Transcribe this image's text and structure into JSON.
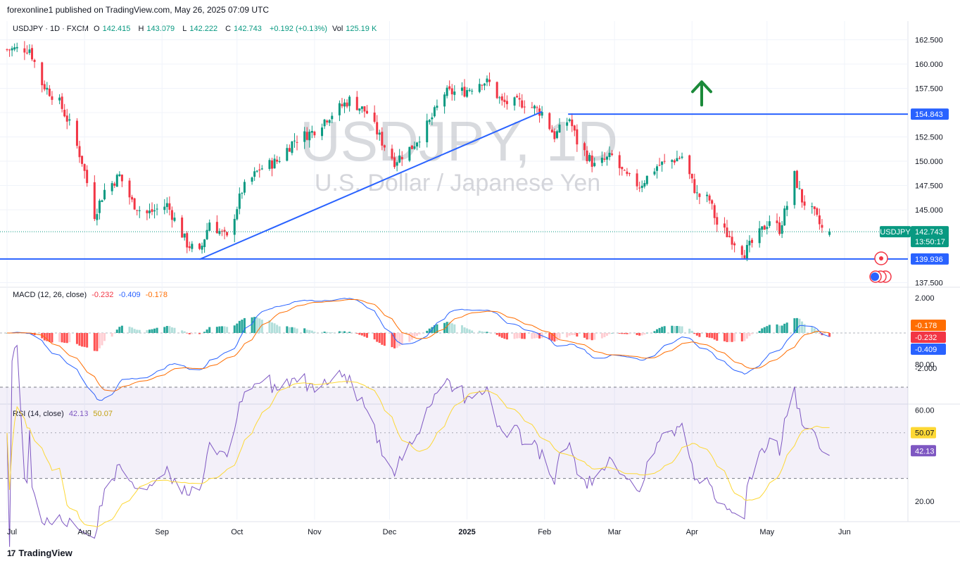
{
  "header": {
    "publisher": "forexonline1 published on TradingView.com, May 26, 2025 07:09 UTC"
  },
  "ohlc": {
    "symbol": "USDJPY · 1D · FXCM",
    "o_label": "O",
    "o": "142.415",
    "h_label": "H",
    "h": "143.079",
    "l_label": "L",
    "l": "142.222",
    "c_label": "C",
    "c": "142.743",
    "change": "+0.192 (+0.13%)",
    "vol_label": "Vol",
    "vol": "125.19 K"
  },
  "watermark": {
    "line1": "USDJPY, 1D",
    "line2": "U.S. Dollar / Japanese Yen"
  },
  "price_axis": {
    "ticks": [
      "162.500",
      "160.000",
      "157.500",
      "155.000",
      "152.500",
      "150.000",
      "147.500",
      "145.000",
      "137.500"
    ],
    "tick_values": [
      162.5,
      160,
      157.5,
      155,
      152.5,
      150,
      147.5,
      145,
      137.5
    ]
  },
  "labels": {
    "resistance": "154.843",
    "support": "139.936",
    "symbol_tag": "USDJPY",
    "last_price": "142.743",
    "countdown": "13:50:17"
  },
  "macd": {
    "title": "MACD (12, 26, close)",
    "hist": "-0.232",
    "macd": "-0.409",
    "signal": "-0.178",
    "ticks": [
      "2.000",
      "-2.000"
    ],
    "tags": [
      "-0.178",
      "-0.232",
      "-0.409"
    ]
  },
  "rsi": {
    "title": "RSI (14, close)",
    "value": "42.13",
    "ma": "50.07",
    "ticks": [
      "80.00",
      "60.00",
      "20.00"
    ],
    "tags": [
      "50.07",
      "42.13"
    ]
  },
  "time_axis": {
    "labels": [
      "Jul",
      "Aug",
      "Sep",
      "Oct",
      "Nov",
      "Dec",
      "2025",
      "Feb",
      "Mar",
      "Apr",
      "May",
      "Jun"
    ]
  },
  "footer": {
    "brand": "TradingView"
  },
  "colors": {
    "up": "#089981",
    "down": "#f23645",
    "line": "#2962ff",
    "signal": "#ff6d00",
    "rsi": "#7e57c2",
    "rsi_ma": "#fdd835",
    "arrow": "#1b8a3a"
  },
  "chart_data": {
    "type": "candlestick",
    "title": "USDJPY, 1D",
    "ylim": [
      137.5,
      163.5
    ],
    "x_labels": [
      "Jul",
      "Aug",
      "Sep",
      "Oct",
      "Nov",
      "Dec",
      "2025",
      "Feb",
      "Mar",
      "Apr",
      "May",
      "Jun"
    ],
    "close_path": [
      [
        "Jul-01",
        161.5
      ],
      [
        "Jul-10",
        161.6
      ],
      [
        "Jul-15",
        158.0
      ],
      [
        "Jul-22",
        156.0
      ],
      [
        "Jul-26",
        153.8
      ],
      [
        "Jul-31",
        150.0
      ],
      [
        "Aug-05",
        144.5
      ],
      [
        "Aug-09",
        147.0
      ],
      [
        "Aug-15",
        148.5
      ],
      [
        "Aug-20",
        145.8
      ],
      [
        "Aug-25",
        144.5
      ],
      [
        "Sep-03",
        145.5
      ],
      [
        "Sep-11",
        141.5
      ],
      [
        "Sep-16",
        140.5
      ],
      [
        "Sep-20",
        143.8
      ],
      [
        "Sep-27",
        142.0
      ],
      [
        "Oct-03",
        147.0
      ],
      [
        "Oct-10",
        149.2
      ],
      [
        "Oct-17",
        150.0
      ],
      [
        "Oct-24",
        152.2
      ],
      [
        "Oct-31",
        153.0
      ],
      [
        "Nov-06",
        154.5
      ],
      [
        "Nov-15",
        156.3
      ],
      [
        "Nov-22",
        155.0
      ],
      [
        "Nov-28",
        152.0
      ],
      [
        "Dec-03",
        150.0
      ],
      [
        "Dec-10",
        151.5
      ],
      [
        "Dec-17",
        154.0
      ],
      [
        "Dec-23",
        157.0
      ],
      [
        "Dec-31",
        157.2
      ],
      [
        "Jan-07",
        158.3
      ],
      [
        "Jan-10",
        158.0
      ],
      [
        "Jan-15",
        156.0
      ],
      [
        "Jan-24",
        156.0
      ],
      [
        "Jan-31",
        155.0
      ],
      [
        "Feb-05",
        152.6
      ],
      [
        "Feb-11",
        154.4
      ],
      [
        "Feb-14",
        152.0
      ],
      [
        "Feb-21",
        149.5
      ],
      [
        "Feb-28",
        150.5
      ],
      [
        "Mar-05",
        148.5
      ],
      [
        "Mar-11",
        147.5
      ],
      [
        "Mar-18",
        149.5
      ],
      [
        "Mar-25",
        150.2
      ],
      [
        "Mar-28",
        150.5
      ],
      [
        "Apr-03",
        146.5
      ],
      [
        "Apr-08",
        146.0
      ],
      [
        "Apr-11",
        143.5
      ],
      [
        "Apr-17",
        142.0
      ],
      [
        "Apr-22",
        140.6
      ],
      [
        "Apr-28",
        142.5
      ],
      [
        "May-02",
        144.0
      ],
      [
        "May-06",
        143.0
      ],
      [
        "May-09",
        145.5
      ],
      [
        "May-12",
        148.5
      ],
      [
        "May-15",
        146.0
      ],
      [
        "May-20",
        144.5
      ],
      [
        "May-23",
        143.0
      ],
      [
        "May-26",
        142.743
      ]
    ],
    "last": {
      "open": 142.415,
      "high": 143.079,
      "low": 142.222,
      "close": 142.743,
      "change": 0.192,
      "change_pct": 0.13,
      "volume": "125.19 K"
    },
    "horizontal_lines": [
      154.843,
      139.936
    ],
    "trendline": [
      [
        "Sep-16",
        139.9
      ],
      [
        "Jan-31",
        155.1
      ]
    ],
    "annotations": [
      "up-arrow near Mar at ~157"
    ],
    "indicators": {
      "macd": {
        "params": [
          12,
          26
        ],
        "hist": -0.232,
        "macd": -0.409,
        "signal": -0.178,
        "ylim": [
          -4,
          3
        ]
      },
      "rsi": {
        "period": 14,
        "value": 42.13,
        "ma": 50.07,
        "bands": [
          30,
          70
        ],
        "ylim": [
          10,
          85
        ]
      }
    }
  }
}
